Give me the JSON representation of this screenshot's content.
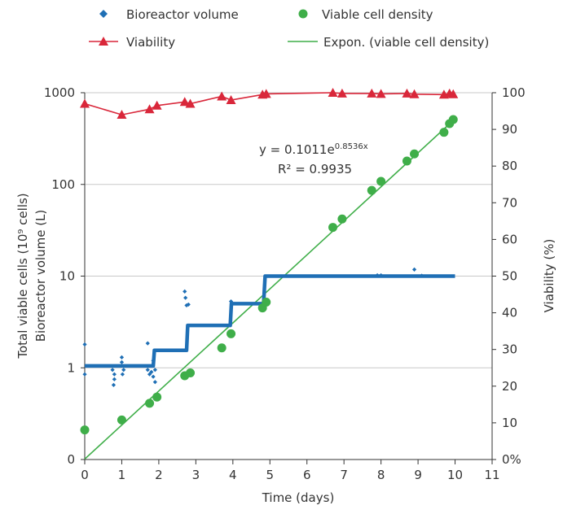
{
  "chart_data": {
    "type": "line",
    "x": {
      "label": "Time (days)",
      "range": [
        0,
        11
      ],
      "ticks": [
        "0",
        "1",
        "2",
        "3",
        "4",
        "5",
        "6",
        "7",
        "8",
        "9",
        "10",
        "11"
      ]
    },
    "y_left": {
      "label_line1": "Total viable cells (10⁹ cells)",
      "label_line2": "Bioreactor volume (L)",
      "scale": "log",
      "ticks": [
        "0",
        "1",
        "10",
        "100",
        "1000"
      ]
    },
    "y_right": {
      "label": "Viability (%)",
      "range": [
        0,
        100
      ],
      "ticks": [
        "0%",
        "10",
        "20",
        "30",
        "40",
        "50",
        "60",
        "70",
        "80",
        "90",
        "100"
      ]
    },
    "legend": [
      "Bioreactor volume",
      "Viable cell density",
      "Viability",
      "Expon. (viable cell density)"
    ],
    "annotation": {
      "equation_base": "y = 0.1011e",
      "equation_exp": "0.8536x",
      "r2": "R² = 0.9935"
    },
    "grid": "horizontal",
    "colors": {
      "volume": "#1f6fb5",
      "density": "#3fae49",
      "viability": "#d9273a",
      "fit": "#3fae49",
      "axis": "#333333",
      "grid": "#c8c8c8"
    },
    "series": [
      {
        "name": "Viability",
        "axis": "right",
        "marker": "triangle",
        "points": [
          [
            0,
            97
          ],
          [
            1,
            94
          ],
          [
            1.75,
            95.5
          ],
          [
            1.95,
            96.5
          ],
          [
            2.7,
            97.5
          ],
          [
            2.85,
            97
          ],
          [
            3.7,
            99
          ],
          [
            3.95,
            98
          ],
          [
            4.8,
            99.5
          ],
          [
            4.9,
            99.7
          ],
          [
            6.7,
            100
          ],
          [
            6.95,
            99.8
          ],
          [
            7.75,
            99.8
          ],
          [
            8,
            99.7
          ],
          [
            8.7,
            99.8
          ],
          [
            8.9,
            99.6
          ],
          [
            9.7,
            99.5
          ],
          [
            9.85,
            99.8
          ],
          [
            9.95,
            99.6
          ]
        ]
      },
      {
        "name": "Viable cell density",
        "axis": "left",
        "marker": "circle",
        "points": [
          [
            0,
            0.21
          ],
          [
            1,
            0.27
          ],
          [
            1.75,
            0.41
          ],
          [
            1.95,
            0.48
          ],
          [
            2.7,
            0.82
          ],
          [
            2.85,
            0.88
          ],
          [
            3.7,
            1.65
          ],
          [
            3.95,
            2.35
          ],
          [
            4.8,
            4.5
          ],
          [
            4.9,
            5.2
          ],
          [
            6.7,
            34
          ],
          [
            6.95,
            42
          ],
          [
            7.75,
            86
          ],
          [
            8,
            108
          ],
          [
            8.7,
            180
          ],
          [
            8.9,
            215
          ],
          [
            9.7,
            370
          ],
          [
            9.85,
            460
          ],
          [
            9.95,
            510
          ]
        ]
      },
      {
        "name": "Bioreactor volume",
        "axis": "left",
        "marker": "diamond-step",
        "steps": [
          [
            0,
            1.05
          ],
          [
            1.85,
            1.05
          ],
          [
            1.88,
            1.55
          ],
          [
            2.75,
            1.55
          ],
          [
            2.78,
            2.9
          ],
          [
            3.93,
            2.9
          ],
          [
            3.96,
            5
          ],
          [
            4.83,
            5
          ],
          [
            4.87,
            10
          ],
          [
            10,
            10
          ]
        ],
        "scatter": [
          [
            0,
            1.8
          ],
          [
            0,
            0.85
          ],
          [
            0.75,
            0.95
          ],
          [
            0.8,
            0.85
          ],
          [
            0.8,
            0.75
          ],
          [
            0.78,
            0.65
          ],
          [
            1,
            1.3
          ],
          [
            1,
            1.15
          ],
          [
            1.05,
            0.95
          ],
          [
            1.02,
            0.85
          ],
          [
            1.7,
            1.85
          ],
          [
            1.7,
            0.95
          ],
          [
            1.75,
            0.85
          ],
          [
            1.8,
            0.9
          ],
          [
            1.85,
            1.2
          ],
          [
            1.85,
            0.8
          ],
          [
            1.9,
            0.7
          ],
          [
            1.9,
            0.95
          ],
          [
            2.7,
            6.8
          ],
          [
            2.72,
            5.8
          ],
          [
            2.75,
            4.8
          ],
          [
            2.8,
            4.9
          ],
          [
            3.95,
            5.3
          ],
          [
            8.9,
            11.8
          ],
          [
            7.9,
            10.2
          ],
          [
            8.0,
            10.2
          ],
          [
            9.1,
            10.1
          ]
        ]
      },
      {
        "name": "Expon. (viable cell density)",
        "axis": "left",
        "fit": "exponential",
        "endpoints": [
          [
            0,
            0.1011
          ],
          [
            10,
            520
          ]
        ]
      }
    ]
  }
}
